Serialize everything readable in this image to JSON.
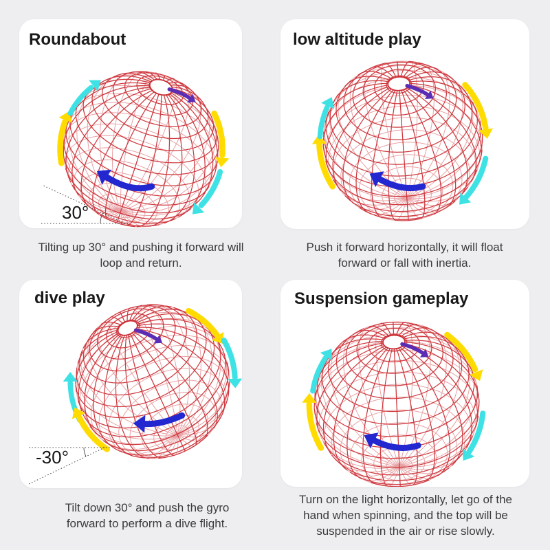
{
  "page": {
    "background": "#eeedf0",
    "panel_background": "#ffffff"
  },
  "colors": {
    "wireframe_red": "#cb2f36",
    "arrow_yellow": "#ffdb00",
    "arrow_cyan": "#3ee1e4",
    "arrow_blue": "#2227d0",
    "arrow_purple": "#5b2db4",
    "angle_line": "#3c3c3c"
  },
  "sections": [
    {
      "id": "roundabout",
      "title": "Roundabout",
      "caption": "Tilting up 30° and pushing it forward will loop and return.",
      "angle_label": "30°"
    },
    {
      "id": "low-altitude-play",
      "title": "low altitude play",
      "caption": "Push it forward horizontally, it will float forward or fall with inertia."
    },
    {
      "id": "dive-play",
      "title": "dive play",
      "caption": "Tilt down 30° and push the gyro forward to perform a dive flight.",
      "angle_label": "-30°"
    },
    {
      "id": "suspension-gameplay",
      "title": "Suspension gameplay",
      "caption": "Turn on the light horizontally, let go of the hand when spinning, and the top will be suspended in the air or rise slowly."
    }
  ]
}
